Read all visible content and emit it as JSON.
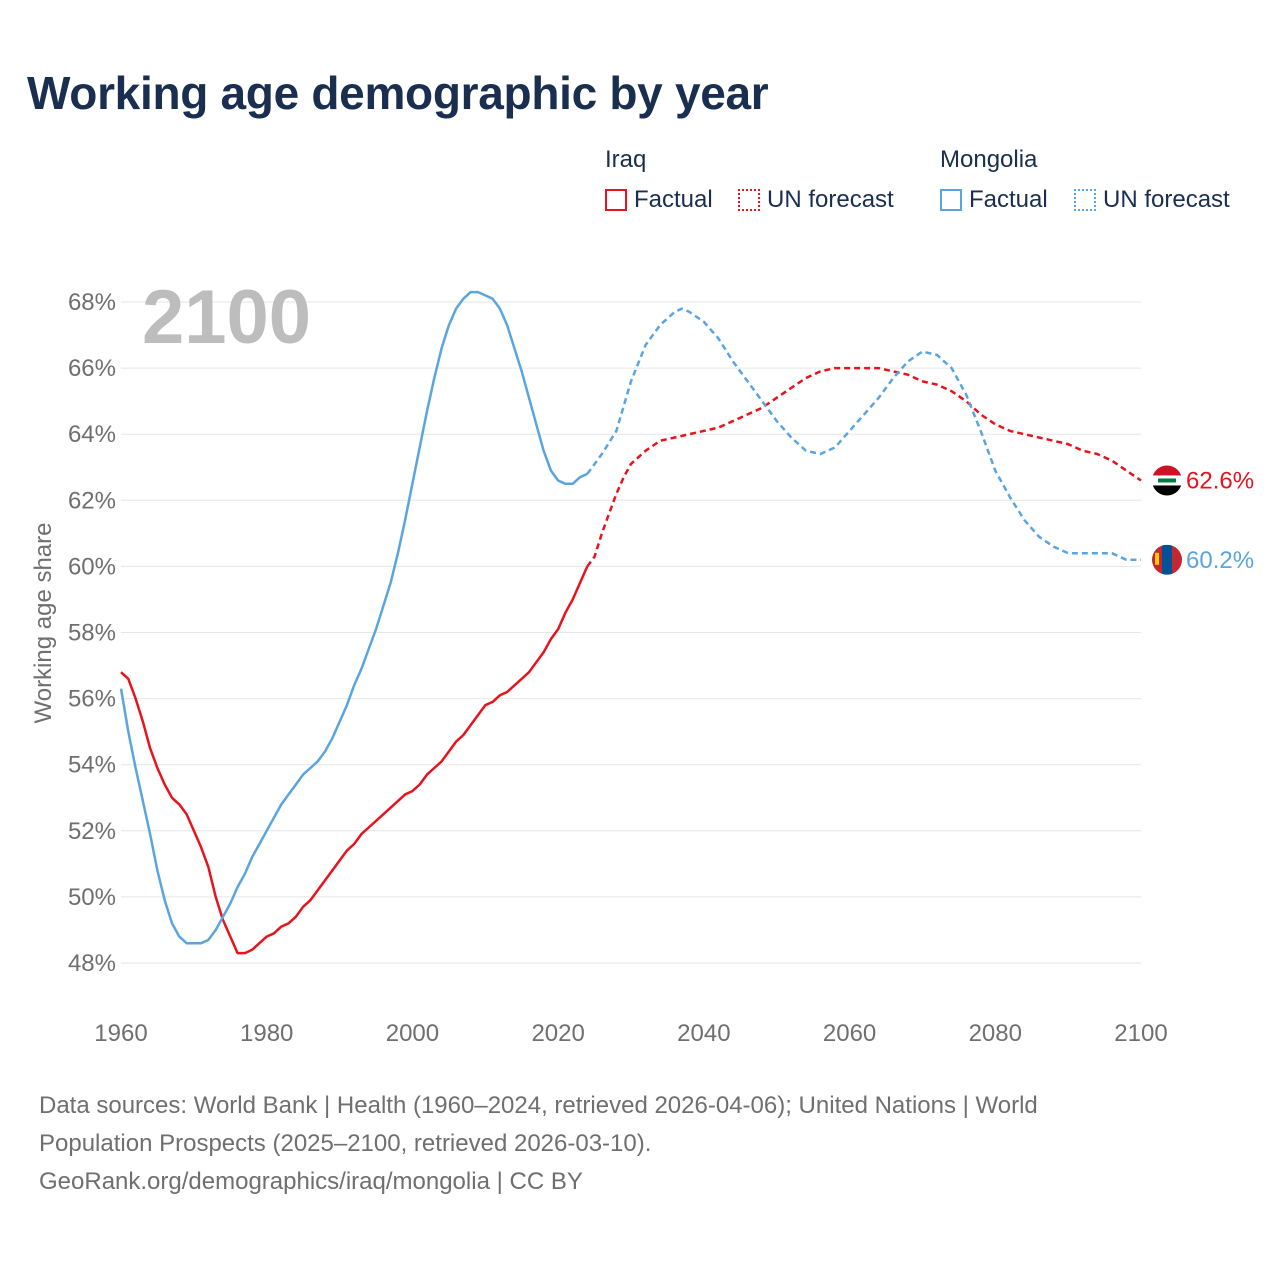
{
  "title": "Working age demographic by year",
  "legend": {
    "groups": [
      {
        "name": "Iraq",
        "color": "#e8131c",
        "items": [
          "Factual",
          "UN forecast"
        ]
      },
      {
        "name": "Mongolia",
        "color": "#5aa5e0",
        "items": [
          "Factual",
          "UN forecast"
        ]
      }
    ]
  },
  "sources": {
    "line1": "Data sources: World Bank | Health (1960–2024, retrieved 2026-04-06); United Nations | World",
    "line2": "Population Prospects (2025–2100, retrieved 2026-03-10).",
    "line3": "GeoRank.org/demographics/iraq/mongolia | CC BY"
  },
  "chart_data": {
    "type": "line",
    "title": "Working age demographic by year",
    "year_label": "2100",
    "xlabel": "",
    "ylabel": "Working age share",
    "xlim": [
      1960,
      2100
    ],
    "ylim": [
      47,
      69
    ],
    "xticks": [
      1960,
      1980,
      2000,
      2020,
      2040,
      2060,
      2080,
      2100
    ],
    "yticks": [
      48,
      50,
      52,
      54,
      56,
      58,
      60,
      62,
      64,
      66,
      68
    ],
    "ytick_labels": [
      "48%",
      "50%",
      "52%",
      "54%",
      "56%",
      "58%",
      "60%",
      "62%",
      "64%",
      "66%",
      "68%"
    ],
    "grid": true,
    "series": [
      {
        "name": "Iraq",
        "color": "#e8131c",
        "end_label": "62.6%",
        "factual": [
          [
            1960,
            56.8
          ],
          [
            1961,
            56.6
          ],
          [
            1962,
            56.0
          ],
          [
            1963,
            55.3
          ],
          [
            1964,
            54.5
          ],
          [
            1965,
            53.9
          ],
          [
            1966,
            53.4
          ],
          [
            1967,
            53.0
          ],
          [
            1968,
            52.8
          ],
          [
            1969,
            52.5
          ],
          [
            1970,
            52.0
          ],
          [
            1971,
            51.5
          ],
          [
            1972,
            50.9
          ],
          [
            1973,
            50.0
          ],
          [
            1974,
            49.3
          ],
          [
            1975,
            48.8
          ],
          [
            1976,
            48.3
          ],
          [
            1977,
            48.3
          ],
          [
            1978,
            48.4
          ],
          [
            1979,
            48.6
          ],
          [
            1980,
            48.8
          ],
          [
            1981,
            48.9
          ],
          [
            1982,
            49.1
          ],
          [
            1983,
            49.2
          ],
          [
            1984,
            49.4
          ],
          [
            1985,
            49.7
          ],
          [
            1986,
            49.9
          ],
          [
            1987,
            50.2
          ],
          [
            1988,
            50.5
          ],
          [
            1989,
            50.8
          ],
          [
            1990,
            51.1
          ],
          [
            1991,
            51.4
          ],
          [
            1992,
            51.6
          ],
          [
            1993,
            51.9
          ],
          [
            1994,
            52.1
          ],
          [
            1995,
            52.3
          ],
          [
            1996,
            52.5
          ],
          [
            1997,
            52.7
          ],
          [
            1998,
            52.9
          ],
          [
            1999,
            53.1
          ],
          [
            2000,
            53.2
          ],
          [
            2001,
            53.4
          ],
          [
            2002,
            53.7
          ],
          [
            2003,
            53.9
          ],
          [
            2004,
            54.1
          ],
          [
            2005,
            54.4
          ],
          [
            2006,
            54.7
          ],
          [
            2007,
            54.9
          ],
          [
            2008,
            55.2
          ],
          [
            2009,
            55.5
          ],
          [
            2010,
            55.8
          ],
          [
            2011,
            55.9
          ],
          [
            2012,
            56.1
          ],
          [
            2013,
            56.2
          ],
          [
            2014,
            56.4
          ],
          [
            2015,
            56.6
          ],
          [
            2016,
            56.8
          ],
          [
            2017,
            57.1
          ],
          [
            2018,
            57.4
          ],
          [
            2019,
            57.8
          ],
          [
            2020,
            58.1
          ],
          [
            2021,
            58.6
          ],
          [
            2022,
            59.0
          ],
          [
            2023,
            59.5
          ],
          [
            2024,
            60.0
          ]
        ],
        "forecast": [
          [
            2024,
            60.0
          ],
          [
            2025,
            60.3
          ],
          [
            2026,
            61.0
          ],
          [
            2027,
            61.6
          ],
          [
            2028,
            62.2
          ],
          [
            2029,
            62.7
          ],
          [
            2030,
            63.1
          ],
          [
            2032,
            63.5
          ],
          [
            2034,
            63.8
          ],
          [
            2036,
            63.9
          ],
          [
            2038,
            64.0
          ],
          [
            2040,
            64.1
          ],
          [
            2042,
            64.2
          ],
          [
            2044,
            64.4
          ],
          [
            2046,
            64.6
          ],
          [
            2048,
            64.8
          ],
          [
            2050,
            65.1
          ],
          [
            2052,
            65.4
          ],
          [
            2054,
            65.7
          ],
          [
            2056,
            65.9
          ],
          [
            2058,
            66.0
          ],
          [
            2060,
            66.0
          ],
          [
            2062,
            66.0
          ],
          [
            2064,
            66.0
          ],
          [
            2066,
            65.9
          ],
          [
            2068,
            65.8
          ],
          [
            2070,
            65.6
          ],
          [
            2072,
            65.5
          ],
          [
            2074,
            65.3
          ],
          [
            2076,
            65.0
          ],
          [
            2078,
            64.6
          ],
          [
            2080,
            64.3
          ],
          [
            2082,
            64.1
          ],
          [
            2084,
            64.0
          ],
          [
            2086,
            63.9
          ],
          [
            2088,
            63.8
          ],
          [
            2090,
            63.7
          ],
          [
            2092,
            63.5
          ],
          [
            2094,
            63.4
          ],
          [
            2096,
            63.2
          ],
          [
            2098,
            62.9
          ],
          [
            2100,
            62.6
          ]
        ]
      },
      {
        "name": "Mongolia",
        "color": "#5aa5e0",
        "end_label": "60.2%",
        "factual": [
          [
            1960,
            56.3
          ],
          [
            1961,
            55.0
          ],
          [
            1962,
            53.9
          ],
          [
            1963,
            52.9
          ],
          [
            1964,
            51.9
          ],
          [
            1965,
            50.8
          ],
          [
            1966,
            49.9
          ],
          [
            1967,
            49.2
          ],
          [
            1968,
            48.8
          ],
          [
            1969,
            48.6
          ],
          [
            1970,
            48.6
          ],
          [
            1971,
            48.6
          ],
          [
            1972,
            48.7
          ],
          [
            1973,
            49.0
          ],
          [
            1974,
            49.4
          ],
          [
            1975,
            49.8
          ],
          [
            1976,
            50.3
          ],
          [
            1977,
            50.7
          ],
          [
            1978,
            51.2
          ],
          [
            1979,
            51.6
          ],
          [
            1980,
            52.0
          ],
          [
            1981,
            52.4
          ],
          [
            1982,
            52.8
          ],
          [
            1983,
            53.1
          ],
          [
            1984,
            53.4
          ],
          [
            1985,
            53.7
          ],
          [
            1986,
            53.9
          ],
          [
            1987,
            54.1
          ],
          [
            1988,
            54.4
          ],
          [
            1989,
            54.8
          ],
          [
            1990,
            55.3
          ],
          [
            1991,
            55.8
          ],
          [
            1992,
            56.4
          ],
          [
            1993,
            56.9
          ],
          [
            1994,
            57.5
          ],
          [
            1995,
            58.1
          ],
          [
            1996,
            58.8
          ],
          [
            1997,
            59.5
          ],
          [
            1998,
            60.4
          ],
          [
            1999,
            61.4
          ],
          [
            2000,
            62.5
          ],
          [
            2001,
            63.6
          ],
          [
            2002,
            64.7
          ],
          [
            2003,
            65.7
          ],
          [
            2004,
            66.6
          ],
          [
            2005,
            67.3
          ],
          [
            2006,
            67.8
          ],
          [
            2007,
            68.1
          ],
          [
            2008,
            68.3
          ],
          [
            2009,
            68.3
          ],
          [
            2010,
            68.2
          ],
          [
            2011,
            68.1
          ],
          [
            2012,
            67.8
          ],
          [
            2013,
            67.3
          ],
          [
            2014,
            66.6
          ],
          [
            2015,
            65.9
          ],
          [
            2016,
            65.1
          ],
          [
            2017,
            64.3
          ],
          [
            2018,
            63.5
          ],
          [
            2019,
            62.9
          ],
          [
            2020,
            62.6
          ],
          [
            2021,
            62.5
          ],
          [
            2022,
            62.5
          ],
          [
            2023,
            62.7
          ],
          [
            2024,
            62.8
          ]
        ],
        "forecast": [
          [
            2024,
            62.8
          ],
          [
            2026,
            63.4
          ],
          [
            2028,
            64.1
          ],
          [
            2030,
            65.6
          ],
          [
            2032,
            66.7
          ],
          [
            2034,
            67.3
          ],
          [
            2036,
            67.7
          ],
          [
            2037,
            67.8
          ],
          [
            2038,
            67.7
          ],
          [
            2040,
            67.4
          ],
          [
            2042,
            66.9
          ],
          [
            2044,
            66.2
          ],
          [
            2046,
            65.6
          ],
          [
            2048,
            65.0
          ],
          [
            2050,
            64.4
          ],
          [
            2052,
            63.9
          ],
          [
            2054,
            63.5
          ],
          [
            2056,
            63.4
          ],
          [
            2058,
            63.6
          ],
          [
            2060,
            64.1
          ],
          [
            2062,
            64.6
          ],
          [
            2064,
            65.1
          ],
          [
            2066,
            65.7
          ],
          [
            2068,
            66.2
          ],
          [
            2070,
            66.5
          ],
          [
            2072,
            66.4
          ],
          [
            2074,
            66.0
          ],
          [
            2076,
            65.2
          ],
          [
            2078,
            64.1
          ],
          [
            2080,
            62.9
          ],
          [
            2082,
            62.1
          ],
          [
            2084,
            61.4
          ],
          [
            2086,
            60.9
          ],
          [
            2088,
            60.6
          ],
          [
            2090,
            60.4
          ],
          [
            2092,
            60.4
          ],
          [
            2094,
            60.4
          ],
          [
            2096,
            60.4
          ],
          [
            2098,
            60.2
          ],
          [
            2100,
            60.2
          ]
        ]
      }
    ]
  }
}
